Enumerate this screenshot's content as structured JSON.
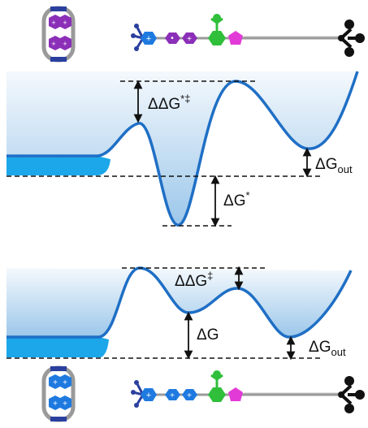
{
  "top_panel": {
    "ring_label": "violet-bipyridinium-ring",
    "barrier_label": {
      "prefix": "ΔΔG",
      "sup": "*‡"
    },
    "well_label": {
      "prefix": "ΔG",
      "sup": "*"
    },
    "out_label": {
      "prefix": "ΔG",
      "sub": "out"
    }
  },
  "bottom_panel": {
    "ring_label": "blue-bipyridinium-ring",
    "barrier_label": {
      "prefix": "ΔΔG",
      "sup": "‡"
    },
    "well_label": {
      "prefix": "ΔG"
    },
    "out_label": {
      "prefix": "ΔG",
      "sub": "out"
    }
  },
  "colors": {
    "curve": "#1f6fc5",
    "fill_top": "#eaf4fb",
    "fill_bottom": "#9cc7ea",
    "pool": "#1ba7ea",
    "ring_violet": "#8b2fb8",
    "ring_blue": "#1f7ae0",
    "stopper_black": "#111111",
    "pentagon_magenta": "#e23ad7",
    "hexagon_green": "#2fbf3a",
    "frame_blue": "#2a3f9e",
    "axle_gray": "#9a9a9a"
  },
  "plus_sign": "+",
  "minus_dot": "•"
}
